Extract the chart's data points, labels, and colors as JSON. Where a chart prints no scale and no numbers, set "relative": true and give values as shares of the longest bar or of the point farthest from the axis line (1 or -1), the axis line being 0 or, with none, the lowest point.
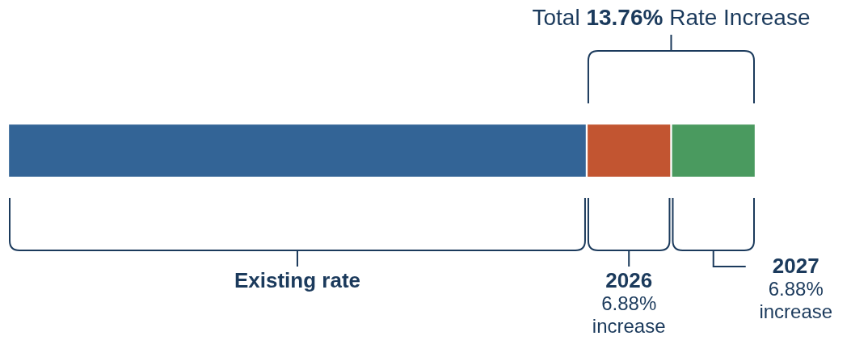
{
  "chart_data": {
    "type": "bar",
    "orientation": "horizontal",
    "stacked": true,
    "relative": true,
    "categories": [
      null
    ],
    "series": [
      {
        "color": "#336496",
        "values": [
          0.774
        ]
      },
      {
        "color": "#c25531",
        "values": [
          0.113
        ]
      },
      {
        "color": "#4a9a5f",
        "values": [
          0.113
        ]
      }
    ],
    "annotations": [
      "Total 13.76% Rate Increase",
      "Existing rate",
      "2026",
      "6.88% increase",
      "2027",
      "6.88% increase"
    ]
  }
}
